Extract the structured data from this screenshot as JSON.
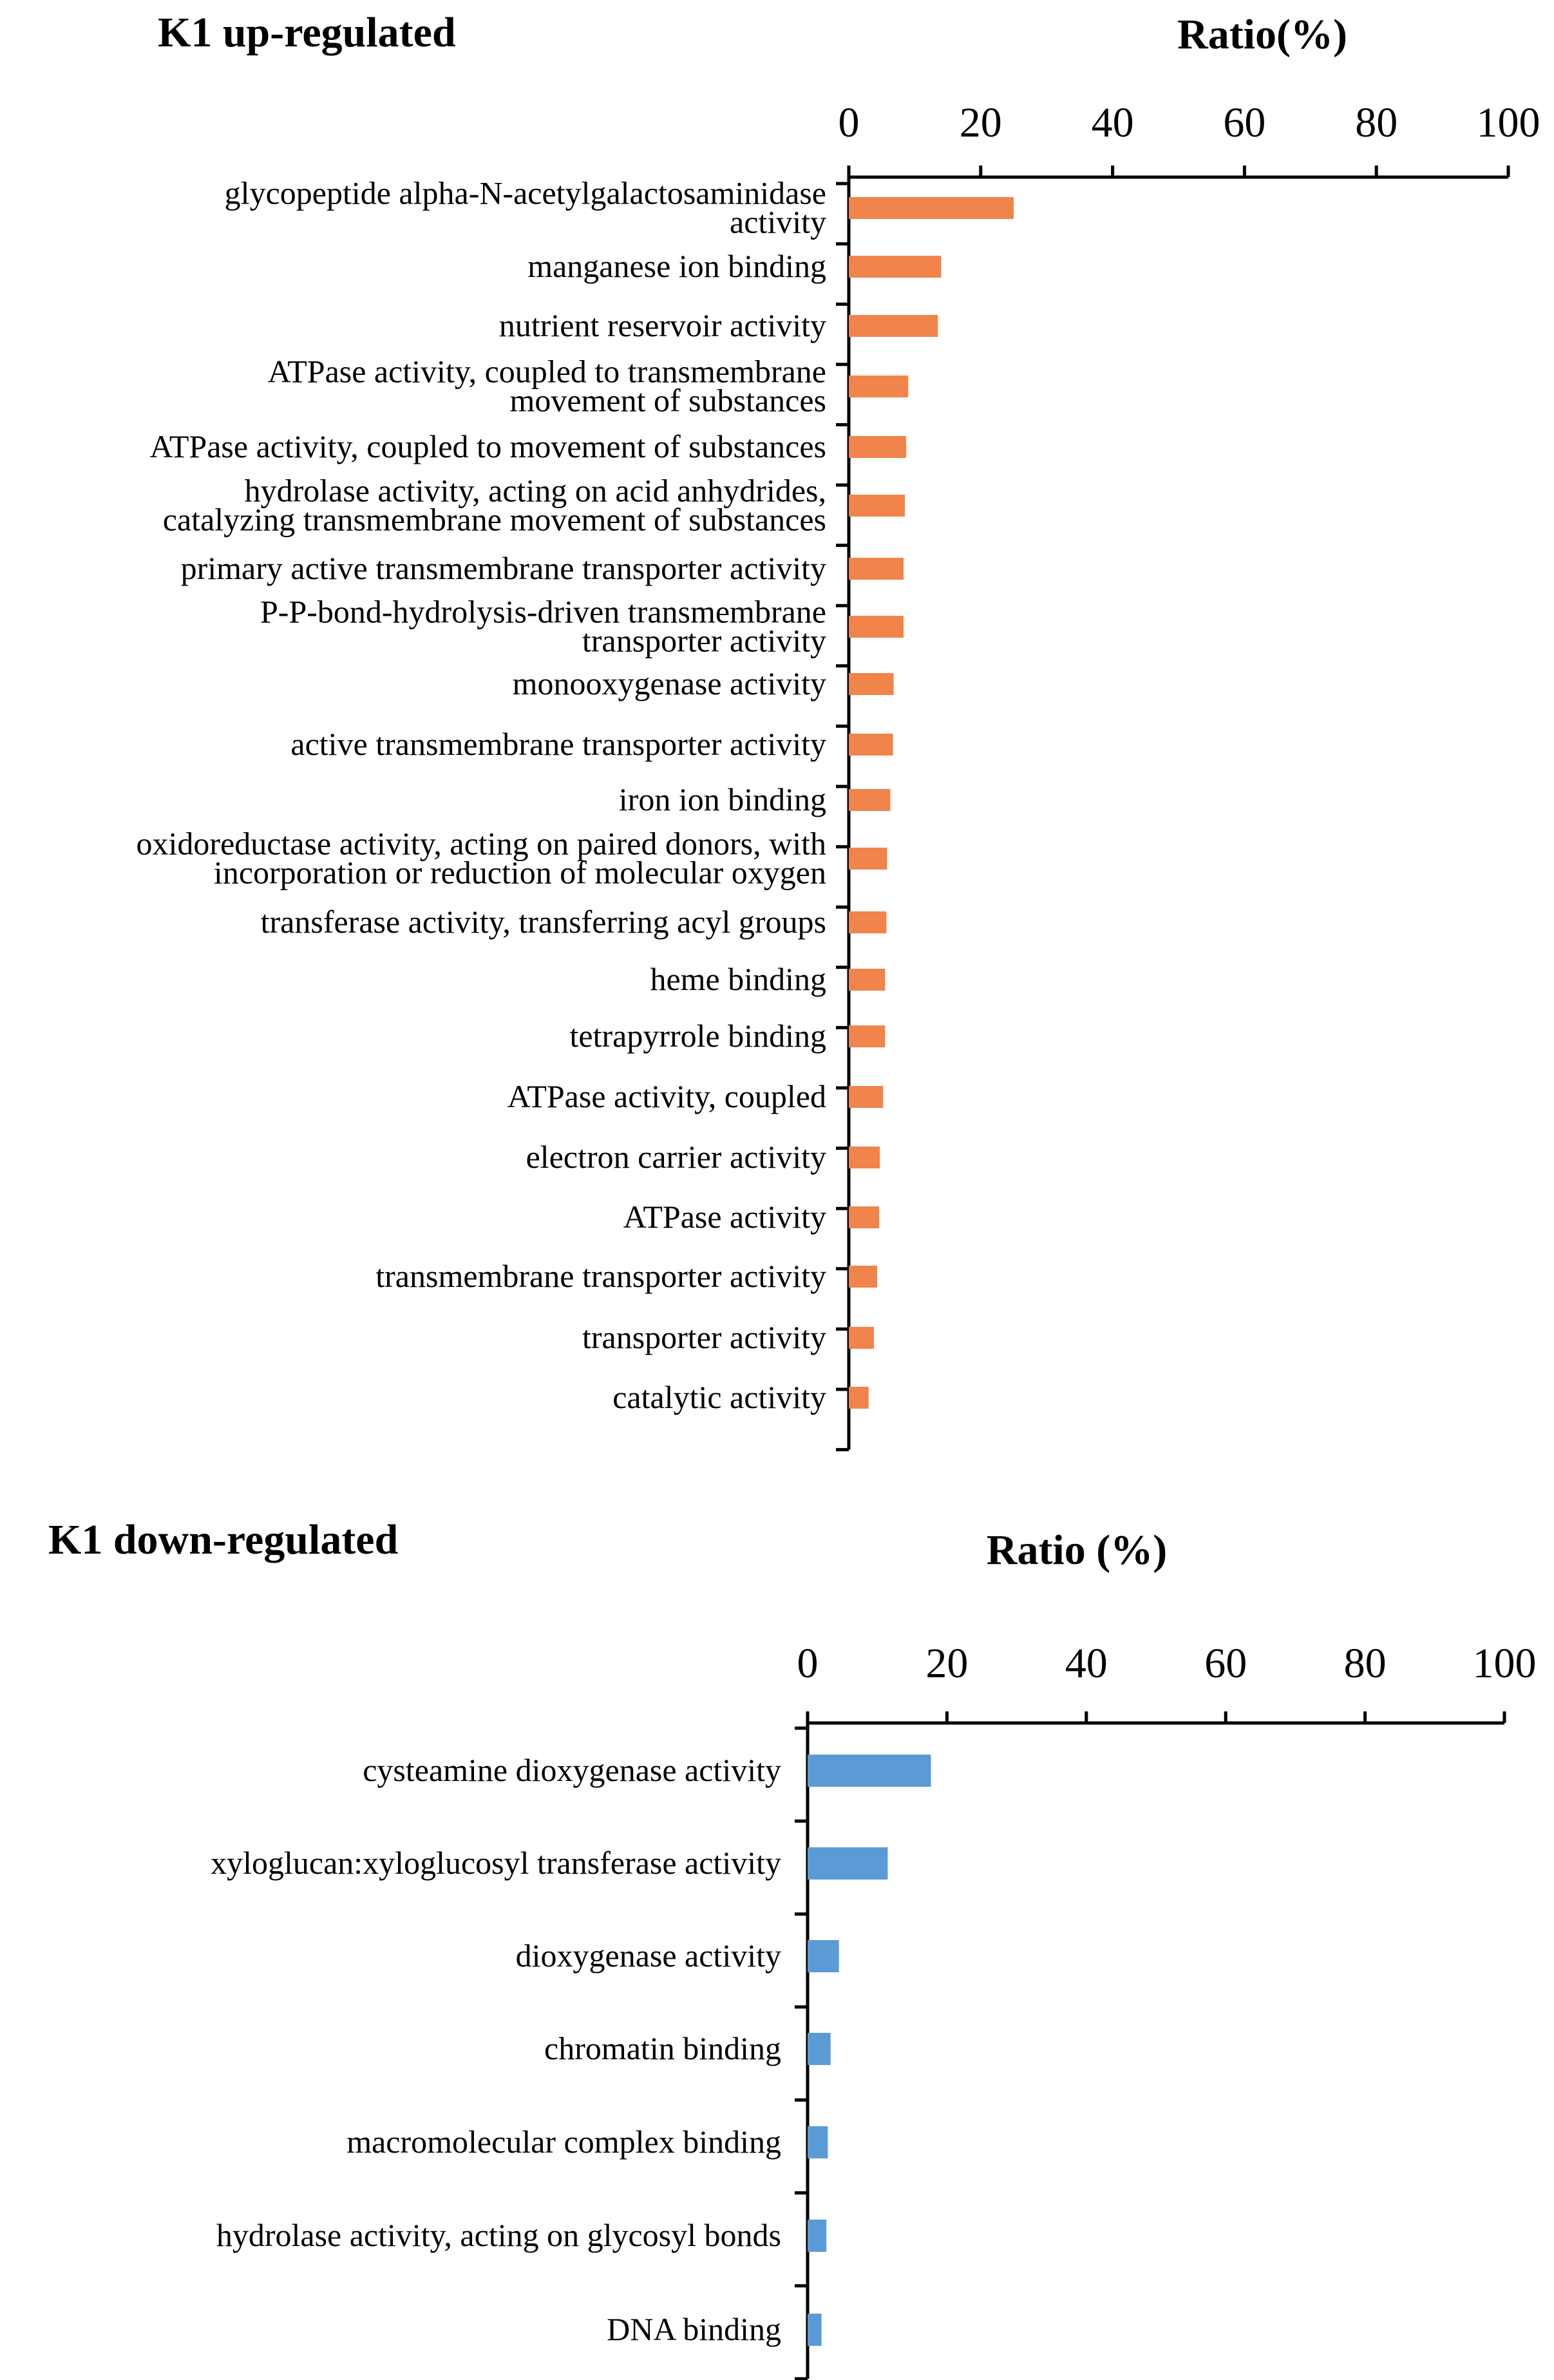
{
  "chart_data": [
    {
      "type": "bar",
      "orientation": "horizontal",
      "title": "K1 up-regulated",
      "xlabel": "Ratio(%)",
      "xlim": [
        0,
        100
      ],
      "xticks": [
        "0",
        "20",
        "40",
        "60",
        "80",
        "100"
      ],
      "color": "#f0844a",
      "categories": [
        "glycopeptide alpha-N-acetylgalactosaminidase\nactivity",
        "manganese ion binding",
        "nutrient reservoir activity",
        "ATPase activity, coupled to transmembrane\nmovement of substances",
        "ATPase activity, coupled to movement of substances",
        "hydrolase activity, acting on acid anhydrides,\ncatalyzing transmembrane movement of substances",
        "primary active transmembrane transporter activity",
        "P-P-bond-hydrolysis-driven transmembrane\ntransporter activity",
        "monooxygenase activity",
        "active transmembrane transporter activity",
        "iron ion binding",
        "oxidoreductase activity, acting on paired donors, with\nincorporation or reduction of molecular oxygen",
        "transferase activity, transferring acyl groups",
        "heme binding",
        "tetrapyrrole binding",
        "ATPase activity, coupled",
        "electron carrier activity",
        "ATPase activity",
        "transmembrane transporter activity",
        "transporter activity",
        "catalytic activity"
      ],
      "values": [
        25,
        14,
        13.5,
        9,
        8.7,
        8.5,
        8.3,
        8.3,
        6.8,
        6.7,
        6.3,
        5.8,
        5.7,
        5.5,
        5.5,
        5.2,
        4.7,
        4.6,
        4.3,
        3.8,
        3.0
      ]
    },
    {
      "type": "bar",
      "orientation": "horizontal",
      "title": "K1 down-regulated",
      "xlabel": "Ratio (%)",
      "xlim": [
        0,
        100
      ],
      "xticks": [
        "0",
        "20",
        "40",
        "60",
        "80",
        "100"
      ],
      "color": "#5b9bd5",
      "categories": [
        "cysteamine dioxygenase activity",
        "xyloglucan:xyloglucosyl transferase activity",
        "dioxygenase activity",
        "chromatin binding",
        "macromolecular complex binding",
        "hydrolase activity, acting on glycosyl bonds",
        "DNA binding"
      ],
      "values": [
        17.7,
        11.5,
        4.5,
        3.3,
        2.9,
        2.7,
        2.0
      ]
    }
  ]
}
